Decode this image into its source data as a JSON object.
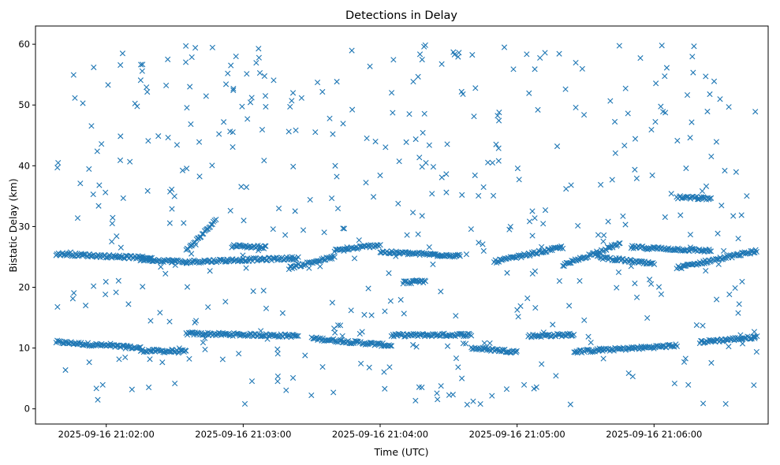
{
  "chart_data": {
    "type": "scatter",
    "title": "Detections in Delay",
    "xlabel": "Time (UTC)",
    "ylabel": "Bistatic Delay (km)",
    "marker": "x",
    "color": "#1f77b4",
    "grid": false,
    "legend": "none",
    "x_ticks": [
      {
        "t": "21:02:00",
        "label": "2025-09-16 21:02:00"
      },
      {
        "t": "21:03:00",
        "label": "2025-09-16 21:03:00"
      },
      {
        "t": "21:04:00",
        "label": "2025-09-16 21:04:00"
      },
      {
        "t": "21:05:00",
        "label": "2025-09-16 21:05:00"
      },
      {
        "t": "21:06:00",
        "label": "2025-09-16 21:06:00"
      }
    ],
    "xlim": [
      "21:01:29",
      "21:06:50"
    ],
    "y_ticks": [
      0,
      10,
      20,
      30,
      40,
      50,
      60
    ],
    "ylim": [
      -2.5,
      63
    ],
    "series": [
      {
        "tracks": [
          {
            "t0": "21:01:38",
            "t1": "21:02:15",
            "y0": 11.0,
            "y1": 10.0
          },
          {
            "t0": "21:02:15",
            "t1": "21:02:35",
            "y0": 9.6,
            "y1": 9.4
          },
          {
            "t0": "21:02:35",
            "t1": "21:03:24",
            "y0": 12.4,
            "y1": 12.0
          },
          {
            "t0": "21:03:30",
            "t1": "21:04:05",
            "y0": 11.6,
            "y1": 10.4
          },
          {
            "t0": "21:04:05",
            "t1": "21:04:40",
            "y0": 12.1,
            "y1": 12.2
          },
          {
            "t0": "21:04:40",
            "t1": "21:05:00",
            "y0": 10.0,
            "y1": 9.4
          },
          {
            "t0": "21:05:05",
            "t1": "21:05:25",
            "y0": 12.0,
            "y1": 12.2
          },
          {
            "t0": "21:05:25",
            "t1": "21:06:10",
            "y0": 9.4,
            "y1": 10.4
          },
          {
            "t0": "21:06:20",
            "t1": "21:06:45",
            "y0": 11.0,
            "y1": 11.8
          },
          {
            "t0": "21:01:38",
            "t1": "21:02:20",
            "y0": 25.5,
            "y1": 24.8
          },
          {
            "t0": "21:02:15",
            "t1": "21:02:35",
            "y0": 24.6,
            "y1": 24.2
          },
          {
            "t0": "21:02:35",
            "t1": "21:02:48",
            "y0": 26.0,
            "y1": 31.0
          },
          {
            "t0": "21:02:35",
            "t1": "21:03:24",
            "y0": 24.2,
            "y1": 24.8
          },
          {
            "t0": "21:02:55",
            "t1": "21:03:10",
            "y0": 26.8,
            "y1": 26.6
          },
          {
            "t0": "21:03:20",
            "t1": "21:03:40",
            "y0": 23.2,
            "y1": 25.0
          },
          {
            "t0": "21:03:40",
            "t1": "21:04:00",
            "y0": 26.0,
            "y1": 27.0
          },
          {
            "t0": "21:04:00",
            "t1": "21:04:35",
            "y0": 25.8,
            "y1": 25.2
          },
          {
            "t0": "21:04:10",
            "t1": "21:04:20",
            "y0": 20.8,
            "y1": 21.0
          },
          {
            "t0": "21:04:50",
            "t1": "21:05:20",
            "y0": 24.2,
            "y1": 26.6
          },
          {
            "t0": "21:05:20",
            "t1": "21:05:45",
            "y0": 23.6,
            "y1": 27.2
          },
          {
            "t0": "21:05:35",
            "t1": "21:06:00",
            "y0": 25.0,
            "y1": 23.8
          },
          {
            "t0": "21:05:50",
            "t1": "21:06:25",
            "y0": 26.6,
            "y1": 26.0
          },
          {
            "t0": "21:06:10",
            "t1": "21:06:25",
            "y0": 34.8,
            "y1": 34.6
          },
          {
            "t0": "21:06:10",
            "t1": "21:06:45",
            "y0": 23.2,
            "y1": 26.0
          }
        ],
        "noise": {
          "t0": "21:01:38",
          "t1": "21:06:45",
          "y_min": 0.5,
          "y_max": 60.0,
          "count": 470
        }
      }
    ]
  }
}
